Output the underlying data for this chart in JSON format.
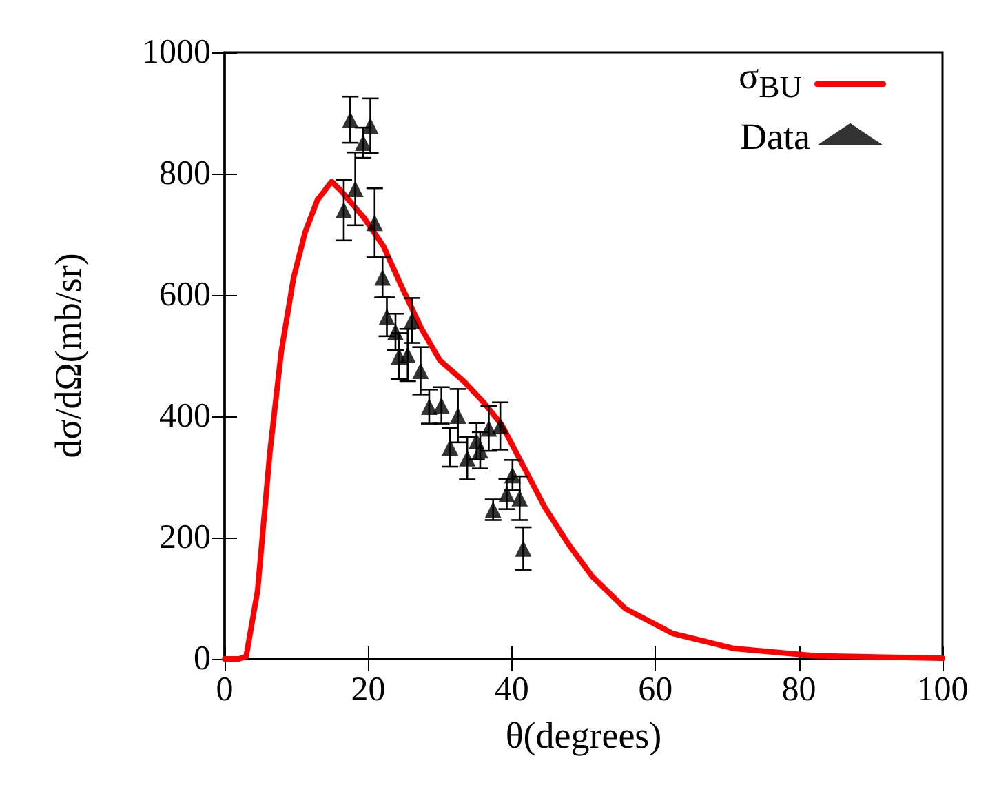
{
  "chart_data": {
    "type": "line",
    "xlabel": "θ(degrees)",
    "ylabel": "dσ/dΩ(mb/sr)",
    "xlim": [
      0,
      100
    ],
    "xticks": [
      0,
      20,
      40,
      60,
      80,
      100
    ],
    "ylim": [
      0,
      1000
    ],
    "yticks": [
      0,
      200,
      400,
      600,
      800,
      1000
    ],
    "grid": false,
    "legend": "top right",
    "series": [
      {
        "name": "σ$_{BU}$",
        "color": "#ff0000",
        "marker": "none",
        "line_style": "solid",
        "x": [
          0,
          2,
          3,
          4.6,
          6.3,
          7.9,
          9.6,
          11.2,
          12.9,
          14.9,
          16.2,
          19.5,
          22.1,
          24.7,
          27.4,
          30,
          33.3,
          36,
          38.6,
          41.3,
          44.6,
          47.9,
          51.2,
          55.8,
          62.4,
          71,
          82.2,
          100
        ],
        "values": [
          0,
          0,
          4,
          113,
          340,
          507,
          628,
          703,
          756,
          787,
          772,
          726,
          681,
          613,
          545,
          492,
          458,
          424,
          386,
          325,
          250,
          189,
          136,
          83,
          42,
          17,
          5,
          1
        ]
      },
      {
        "name": "Data",
        "type": "scatter",
        "color": "#000000",
        "marker": "triangle",
        "x": [
          17.5,
          20.3,
          19.3,
          18.2,
          16.6,
          20.9,
          22.0,
          22.6,
          23.8,
          26.1,
          24.3,
          25.5,
          27.3,
          28.5,
          30.2,
          32.5,
          31.4,
          33.8,
          35.1,
          35.6,
          36.8,
          38.4,
          37.4,
          40.1,
          39.3,
          41.1,
          41.6
        ],
        "values": [
          889,
          879,
          851,
          775,
          740,
          719,
          629,
          564,
          539,
          558,
          499,
          501,
          475,
          416,
          418,
          401,
          349,
          331,
          359,
          344,
          380,
          384,
          246,
          303,
          272,
          265,
          182
        ],
        "errors": [
          38,
          45,
          25,
          60,
          50,
          57,
          33,
          32,
          30,
          37,
          38,
          43,
          39,
          28,
          30,
          44,
          32,
          35,
          30,
          30,
          37,
          39,
          17,
          25,
          25,
          36,
          35
        ]
      }
    ]
  }
}
